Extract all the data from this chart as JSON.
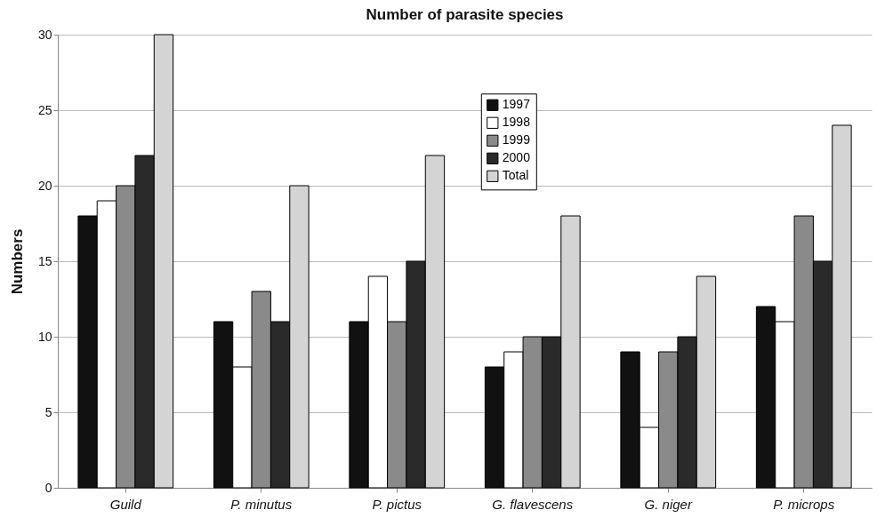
{
  "chart_data": {
    "type": "bar",
    "title": "Number of parasite species",
    "ylabel": "Numbers",
    "categories": [
      "Guild",
      "P. minutus",
      "P. pictus",
      "G. flavescens",
      "G. niger",
      "P. microps"
    ],
    "series": [
      {
        "name": "1997",
        "color": "#111111",
        "values": [
          18,
          11,
          11,
          8,
          9,
          12
        ]
      },
      {
        "name": "1998",
        "color": "#ffffff",
        "values": [
          19,
          8,
          14,
          9,
          4,
          11
        ]
      },
      {
        "name": "1999",
        "color": "#8a8a8a",
        "values": [
          20,
          13,
          11,
          10,
          9,
          18
        ]
      },
      {
        "name": "2000",
        "color": "#2a2a2a",
        "values": [
          22,
          11,
          15,
          10,
          10,
          15
        ]
      },
      {
        "name": "Total",
        "color": "#d4d4d4",
        "values": [
          30,
          20,
          22,
          18,
          14,
          24
        ]
      }
    ],
    "ylim": [
      0,
      30
    ],
    "yticks": [
      0,
      5,
      10,
      15,
      20,
      25,
      30
    ],
    "grid": "y",
    "legend": "top"
  }
}
